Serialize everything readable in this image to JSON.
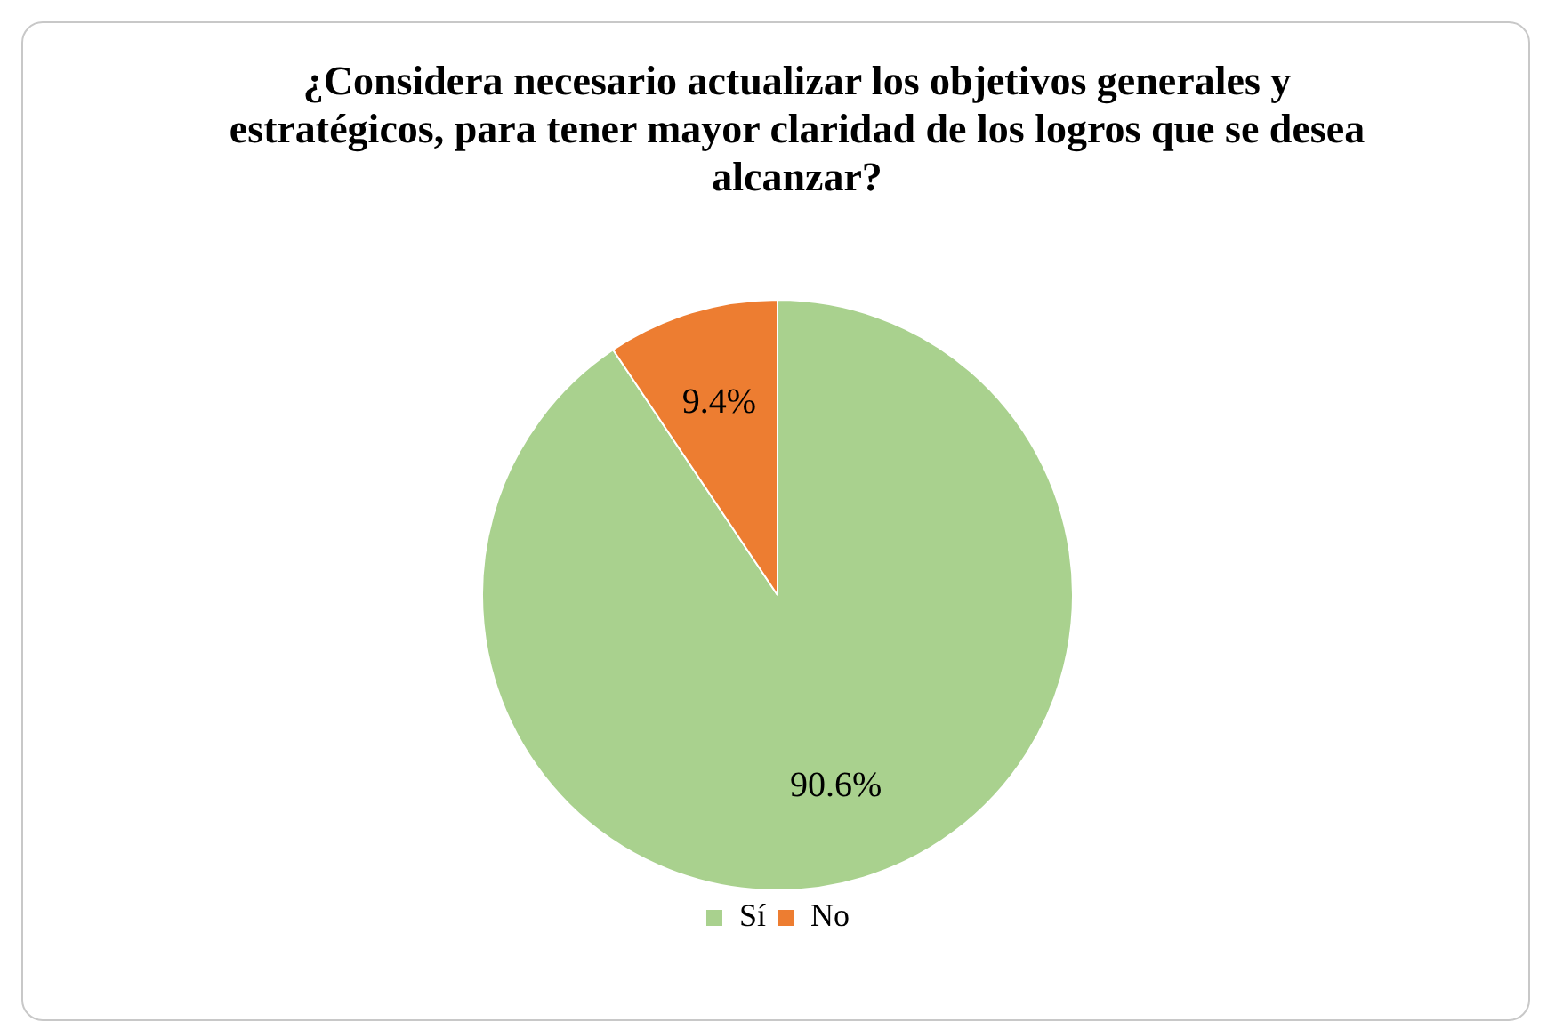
{
  "chart_data": {
    "type": "pie",
    "title": "¿Considera necesario actualizar los objetivos generales y estratégicos, para tener mayor claridad de los logros que se desea alcanzar?",
    "categories": [
      "Sí",
      "No"
    ],
    "values": [
      90.6,
      9.4
    ],
    "colors": [
      "#a9d18e",
      "#ed7d31"
    ],
    "value_labels": [
      "90.6%",
      "9.4%"
    ],
    "legend": "bottom"
  }
}
